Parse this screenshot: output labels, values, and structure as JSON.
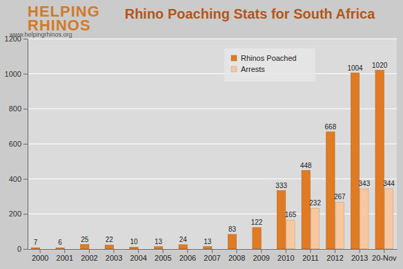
{
  "chart_data": {
    "type": "bar",
    "title": "Rhino Poaching Stats for South Africa",
    "annotations": [
      "HELPING",
      "RHINOS",
      "www.helpingrhinos.org"
    ],
    "categories": [
      "2000",
      "2001",
      "2002",
      "2003",
      "2004",
      "2005",
      "2006",
      "2007",
      "2008",
      "2009",
      "2010",
      "2011",
      "2012",
      "2013",
      "20-Nov"
    ],
    "series": [
      {
        "name": "Rhinos Poached",
        "color": "#e07b24",
        "values": [
          7,
          6,
          25,
          22,
          10,
          13,
          24,
          13,
          83,
          122,
          333,
          448,
          668,
          1004,
          1020
        ]
      },
      {
        "name": "Arrests",
        "color": "#f7c8a0",
        "values": [
          null,
          null,
          null,
          null,
          null,
          null,
          null,
          null,
          null,
          null,
          165,
          232,
          267,
          343,
          344
        ]
      }
    ],
    "ylim": [
      0,
      1200
    ],
    "yticks": [
      0,
      200,
      400,
      600,
      800,
      1000,
      1200
    ],
    "grid": true,
    "legend": "upper right",
    "data_labels": true
  }
}
